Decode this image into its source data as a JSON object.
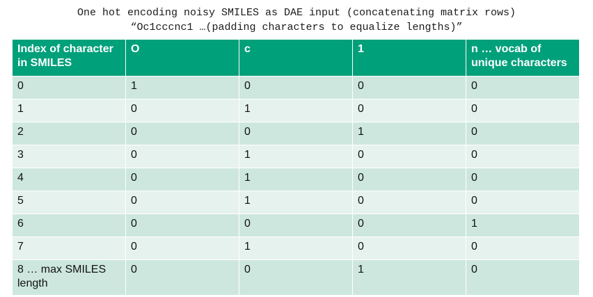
{
  "caption": {
    "line1": "One hot encoding noisy SMILES as DAE input (concatenating matrix rows)",
    "line2": "“Oc1cccnc1 …(padding characters to equalize lengths)”"
  },
  "table": {
    "headers": [
      "Index of character in SMILES",
      "O",
      "c",
      "1",
      "n … vocab of unique characters"
    ],
    "rows": [
      [
        "0",
        "1",
        "0",
        "0",
        "0"
      ],
      [
        "1",
        "0",
        "1",
        "0",
        "0"
      ],
      [
        "2",
        "0",
        "0",
        "1",
        "0"
      ],
      [
        "3",
        "0",
        "1",
        "0",
        "0"
      ],
      [
        "4",
        "0",
        "1",
        "0",
        "0"
      ],
      [
        "5",
        "0",
        "1",
        "0",
        "0"
      ],
      [
        "6",
        "0",
        "0",
        "0",
        "1"
      ],
      [
        "7",
        "0",
        "1",
        "0",
        "0"
      ],
      [
        "8 … max SMILES length",
        "0",
        "0",
        "1",
        "0"
      ]
    ]
  },
  "colors": {
    "header_bg": "#00a07a",
    "row_odd_bg": "#cde7de",
    "row_even_bg": "#e6f2ee"
  }
}
